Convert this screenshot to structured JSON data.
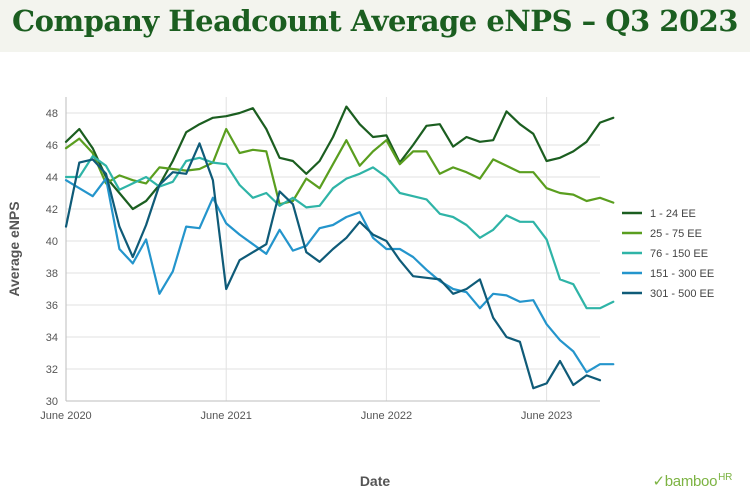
{
  "title": "Company Headcount Average eNPS – Q3 2023",
  "brand": {
    "name": "bamboo",
    "suffix": "HR",
    "logo_icon": "bamboohr-leaf-icon"
  },
  "chart_data": {
    "type": "line",
    "xlabel": "Date",
    "ylabel": "Average eNPS",
    "ylim": [
      30,
      49
    ],
    "yticks": [
      30,
      32,
      34,
      36,
      38,
      40,
      42,
      44,
      46,
      48
    ],
    "x_start": "2020-06",
    "x_end": "2023-10",
    "xticks": [
      {
        "date": "2020-06",
        "label": "June 2020"
      },
      {
        "date": "2021-06",
        "label": "June 2021"
      },
      {
        "date": "2022-06",
        "label": "June 2022"
      },
      {
        "date": "2023-06",
        "label": "June 2023"
      }
    ],
    "grid": true,
    "legend_position": "right",
    "series": [
      {
        "name": "1 - 24 EE",
        "color": "#1b5e20",
        "values": [
          46.2,
          47.0,
          45.8,
          44.0,
          43.0,
          42.0,
          42.5,
          43.5,
          45.0,
          46.8,
          47.3,
          47.7,
          47.8,
          48.0,
          48.3,
          47.0,
          45.2,
          45.0,
          44.2,
          45.0,
          46.5,
          48.4,
          47.3,
          46.5,
          46.6,
          44.9,
          46.0,
          47.2,
          47.3,
          45.9,
          46.5,
          46.2,
          46.3,
          48.1,
          47.3,
          46.7,
          45.0,
          45.2,
          45.6,
          46.2,
          47.4,
          47.7
        ]
      },
      {
        "name": "25 - 75 EE",
        "color": "#5a9e1f",
        "values": [
          45.8,
          46.4,
          45.5,
          43.6,
          44.1,
          43.8,
          43.6,
          44.6,
          44.5,
          44.4,
          44.5,
          44.9,
          47.0,
          45.5,
          45.7,
          45.6,
          42.3,
          42.5,
          43.9,
          43.3,
          44.8,
          46.3,
          44.7,
          45.6,
          46.3,
          44.8,
          45.6,
          45.6,
          44.2,
          44.6,
          44.3,
          43.9,
          45.1,
          44.7,
          44.3,
          44.3,
          43.3,
          43.0,
          42.9,
          42.5,
          42.7,
          42.4
        ]
      },
      {
        "name": "76 - 150 EE",
        "color": "#2fb4a7",
        "values": [
          44.0,
          44.0,
          45.3,
          44.7,
          43.2,
          43.6,
          44.0,
          43.4,
          43.7,
          45.0,
          45.2,
          44.9,
          44.8,
          43.5,
          42.7,
          43.0,
          42.2,
          42.7,
          42.1,
          42.2,
          43.3,
          43.9,
          44.2,
          44.6,
          44.0,
          43.0,
          42.8,
          42.6,
          41.7,
          41.5,
          41.0,
          40.2,
          40.7,
          41.6,
          41.2,
          41.2,
          40.1,
          37.6,
          37.3,
          35.8,
          35.8,
          36.2
        ]
      },
      {
        "name": "151 - 300 EE",
        "color": "#2495cc",
        "values": [
          43.8,
          43.3,
          42.8,
          43.9,
          39.5,
          38.6,
          40.1,
          36.7,
          38.1,
          40.9,
          40.8,
          42.7,
          41.1,
          40.4,
          39.8,
          39.2,
          40.7,
          39.4,
          39.7,
          40.8,
          41.0,
          41.5,
          41.8,
          40.2,
          39.5,
          39.5,
          39.0,
          38.2,
          37.5,
          37.0,
          36.8,
          35.8,
          36.7,
          36.6,
          36.2,
          36.3,
          34.8,
          33.8,
          33.1,
          31.8,
          32.3,
          32.3
        ]
      },
      {
        "name": "301 - 500 EE",
        "color": "#0f5b78",
        "values": [
          40.9,
          44.9,
          45.1,
          44.2,
          40.9,
          39.0,
          41.0,
          43.5,
          44.3,
          44.2,
          46.1,
          43.8,
          37.0,
          38.8,
          39.3,
          39.8,
          43.1,
          42.3,
          39.3,
          38.7,
          39.5,
          40.2,
          41.2,
          40.4,
          40.0,
          38.8,
          37.8,
          37.7,
          37.6,
          36.7,
          37.0,
          37.6,
          35.2,
          34.0,
          33.7,
          30.8,
          31.1,
          32.5,
          31.0,
          31.6,
          31.3
        ]
      }
    ]
  }
}
